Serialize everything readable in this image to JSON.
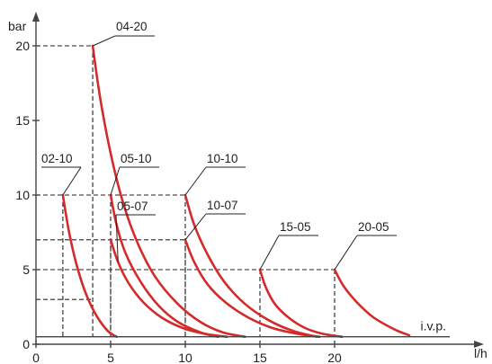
{
  "chart_data": {
    "type": "line",
    "title": "",
    "xlabel": "l/h",
    "ylabel": "bar",
    "xlim": [
      0,
      26.5
    ],
    "ylim": [
      0,
      21.5
    ],
    "x_ticks": [
      0,
      5,
      10,
      15,
      20
    ],
    "y_ticks": [
      0,
      5,
      10,
      15,
      20
    ],
    "grid": false,
    "baseline": {
      "label": "i.v.p.",
      "y": 0.5
    },
    "reference_levels_y": [
      20,
      10,
      7,
      5,
      3
    ],
    "colors": {
      "curve": "#d42a2a",
      "axis": "#444444",
      "guide": "#222222"
    },
    "series": [
      {
        "name": "04-20",
        "x": [
          3.8,
          4.3,
          5.0,
          5.8,
          6.8,
          8.0,
          9.5,
          11.0,
          12.5,
          14.0
        ],
        "y": [
          20,
          16.5,
          12.8,
          9.6,
          6.8,
          4.5,
          2.7,
          1.5,
          0.8,
          0.5
        ]
      },
      {
        "name": "02-10",
        "x": [
          1.8,
          2.2,
          2.7,
          3.3,
          4.0,
          4.8,
          5.4
        ],
        "y": [
          10,
          7.6,
          5.4,
          3.5,
          2.0,
          0.9,
          0.5
        ]
      },
      {
        "name": "05-10",
        "x": [
          5.0,
          5.4,
          6.0,
          7.0,
          8.2,
          9.5,
          11.0,
          12.2
        ],
        "y": [
          10,
          8.0,
          6.1,
          4.2,
          2.6,
          1.5,
          0.8,
          0.5
        ]
      },
      {
        "name": "05-07",
        "x": [
          5.0,
          5.5,
          6.2,
          7.2,
          8.4,
          9.8,
          11.3,
          12.8
        ],
        "y": [
          7,
          5.5,
          4.1,
          2.8,
          1.8,
          1.1,
          0.7,
          0.5
        ]
      },
      {
        "name": "10-10",
        "x": [
          10.0,
          10.6,
          11.5,
          12.6,
          14.0,
          15.6,
          17.2,
          18.8
        ],
        "y": [
          10,
          8.0,
          6.0,
          4.2,
          2.7,
          1.6,
          0.9,
          0.5
        ]
      },
      {
        "name": "10-07",
        "x": [
          10.0,
          10.6,
          11.5,
          12.7,
          14.2,
          15.8,
          17.5,
          19.0
        ],
        "y": [
          7,
          5.5,
          4.0,
          2.8,
          1.8,
          1.1,
          0.7,
          0.5
        ]
      },
      {
        "name": "15-05",
        "x": [
          15.0,
          15.4,
          16.0,
          16.9,
          18.0,
          19.2,
          20.5
        ],
        "y": [
          5,
          3.8,
          2.7,
          1.8,
          1.1,
          0.7,
          0.5
        ]
      },
      {
        "name": "20-05",
        "x": [
          20.0,
          20.6,
          21.5,
          22.6,
          24.0,
          25.0
        ],
        "y": [
          5,
          3.9,
          2.8,
          1.8,
          1.0,
          0.6
        ]
      }
    ],
    "curve_labels": [
      {
        "text": "04-20",
        "series": "04-20"
      },
      {
        "text": "02-10",
        "series": "02-10"
      },
      {
        "text": "05-10",
        "series": "05-10"
      },
      {
        "text": "05-07",
        "series": "05-07"
      },
      {
        "text": "10-10",
        "series": "10-10"
      },
      {
        "text": "10-07",
        "series": "10-07"
      },
      {
        "text": "15-05",
        "series": "15-05"
      },
      {
        "text": "20-05",
        "series": "20-05"
      }
    ]
  }
}
